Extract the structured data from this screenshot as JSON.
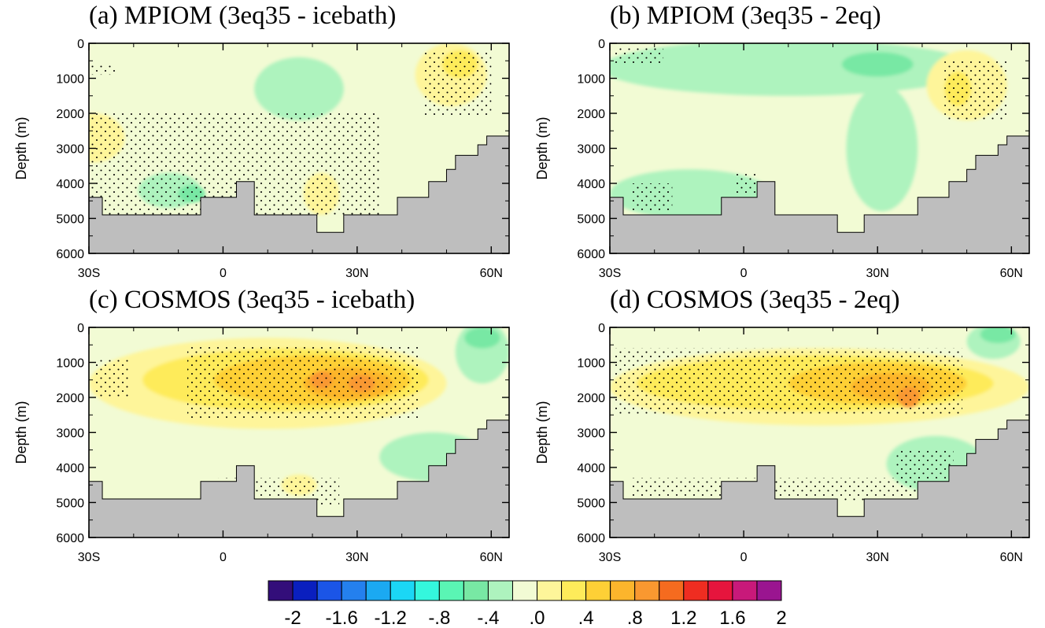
{
  "chart_data": [
    {
      "type": "heatmap",
      "title": "(a) MPIOM (3eq35 - icebath)",
      "ylabel": "Depth (m)",
      "xlim": [
        -30,
        64
      ],
      "ylim": [
        0,
        6000
      ],
      "x_ticks": [
        {
          "value": -30,
          "label": "30S"
        },
        {
          "value": 0,
          "label": "0"
        },
        {
          "value": 30,
          "label": "30N"
        },
        {
          "value": 60,
          "label": "60N"
        }
      ],
      "y_ticks": [
        {
          "value": 0,
          "label": "0"
        },
        {
          "value": 1000,
          "label": "1000"
        },
        {
          "value": 2000,
          "label": "2000"
        },
        {
          "value": 3000,
          "label": "3000"
        },
        {
          "value": 4000,
          "label": "4000"
        },
        {
          "value": 5000,
          "label": "5000"
        },
        {
          "value": 6000,
          "label": "6000"
        }
      ],
      "background": "#f2fbd4",
      "patches": [
        {
          "color": "#aef3be",
          "cx": 17,
          "cy": 1300,
          "rx": 10,
          "ry": 900
        },
        {
          "color": "#aef3be",
          "cx": -12,
          "cy": 4200,
          "rx": 7,
          "ry": 500
        },
        {
          "color": "#78e8a4",
          "cx": -7,
          "cy": 4300,
          "rx": 3,
          "ry": 250
        },
        {
          "color": "#fef59a",
          "cx": -29,
          "cy": 2700,
          "rx": 7,
          "ry": 700
        },
        {
          "color": "#fef59a",
          "cx": 51,
          "cy": 900,
          "rx": 8,
          "ry": 900
        },
        {
          "color": "#feeb5a",
          "cx": 53,
          "cy": 600,
          "rx": 4,
          "ry": 400
        },
        {
          "color": "#fef59a",
          "cx": 22,
          "cy": 4300,
          "rx": 4,
          "ry": 600
        }
      ],
      "stipple": [
        {
          "x": [
            -30,
            -24
          ],
          "y": [
            600,
            900
          ]
        },
        {
          "x": [
            -30,
            35
          ],
          "y": [
            2000,
            4900
          ]
        },
        {
          "x": [
            45,
            60
          ],
          "y": [
            200,
            2100
          ]
        }
      ]
    },
    {
      "type": "heatmap",
      "title": "(b) MPIOM (3eq35 - 2eq)",
      "ylabel": "Depth (m)",
      "xlim": [
        -30,
        64
      ],
      "ylim": [
        0,
        6000
      ],
      "x_ticks": [
        {
          "value": -30,
          "label": "30S"
        },
        {
          "value": 0,
          "label": "0"
        },
        {
          "value": 30,
          "label": "30N"
        },
        {
          "value": 60,
          "label": "60N"
        }
      ],
      "y_ticks": [
        {
          "value": 0,
          "label": "0"
        },
        {
          "value": 1000,
          "label": "1000"
        },
        {
          "value": 2000,
          "label": "2000"
        },
        {
          "value": 3000,
          "label": "3000"
        },
        {
          "value": 4000,
          "label": "4000"
        },
        {
          "value": 5000,
          "label": "5000"
        },
        {
          "value": 6000,
          "label": "6000"
        }
      ],
      "background": "#f2fbd4",
      "patches": [
        {
          "color": "#aef3be",
          "cx": 10,
          "cy": 700,
          "rx": 42,
          "ry": 800
        },
        {
          "color": "#78e8a4",
          "cx": 30,
          "cy": 600,
          "rx": 8,
          "ry": 350
        },
        {
          "color": "#aef3be",
          "cx": -12,
          "cy": 4300,
          "rx": 18,
          "ry": 700
        },
        {
          "color": "#aef3be",
          "cx": 31,
          "cy": 3000,
          "rx": 8,
          "ry": 1800
        },
        {
          "color": "#fef59a",
          "cx": 50,
          "cy": 1200,
          "rx": 9,
          "ry": 1000
        },
        {
          "color": "#feeb5a",
          "cx": 48,
          "cy": 1300,
          "rx": 3,
          "ry": 500
        }
      ],
      "stipple": [
        {
          "x": [
            -29,
            -18
          ],
          "y": [
            100,
            600
          ]
        },
        {
          "x": [
            45,
            59
          ],
          "y": [
            500,
            2200
          ]
        },
        {
          "x": [
            -25,
            -16
          ],
          "y": [
            4000,
            4800
          ]
        },
        {
          "x": [
            -2,
            3
          ],
          "y": [
            3700,
            4300
          ]
        }
      ]
    },
    {
      "type": "heatmap",
      "title": "(c) COSMOS (3eq35 - icebath)",
      "ylabel": "Depth (m)",
      "xlim": [
        -30,
        64
      ],
      "ylim": [
        0,
        6000
      ],
      "x_ticks": [
        {
          "value": -30,
          "label": "30S"
        },
        {
          "value": 0,
          "label": "0"
        },
        {
          "value": 30,
          "label": "30N"
        },
        {
          "value": 60,
          "label": "60N"
        }
      ],
      "y_ticks": [
        {
          "value": 0,
          "label": "0"
        },
        {
          "value": 1000,
          "label": "1000"
        },
        {
          "value": 2000,
          "label": "2000"
        },
        {
          "value": 3000,
          "label": "3000"
        },
        {
          "value": 4000,
          "label": "4000"
        },
        {
          "value": 5000,
          "label": "5000"
        },
        {
          "value": 6000,
          "label": "6000"
        }
      ],
      "background": "#f2fbd4",
      "patches": [
        {
          "color": "#fef59a",
          "cx": 10,
          "cy": 1600,
          "rx": 40,
          "ry": 1300
        },
        {
          "color": "#feeb5a",
          "cx": 14,
          "cy": 1500,
          "rx": 32,
          "ry": 900
        },
        {
          "color": "#fed036",
          "cx": 20,
          "cy": 1500,
          "rx": 22,
          "ry": 700
        },
        {
          "color": "#fcb52c",
          "cx": 28,
          "cy": 1600,
          "rx": 10,
          "ry": 450
        },
        {
          "color": "#f99830",
          "cx": 22,
          "cy": 1500,
          "rx": 2.5,
          "ry": 250
        },
        {
          "color": "#f99830",
          "cx": 31,
          "cy": 1600,
          "rx": 3,
          "ry": 250
        },
        {
          "color": "#aef3be",
          "cx": 58,
          "cy": 700,
          "rx": 6,
          "ry": 900
        },
        {
          "color": "#78e8a4",
          "cx": 58,
          "cy": 300,
          "rx": 4,
          "ry": 300
        },
        {
          "color": "#aef3be",
          "cx": 47,
          "cy": 3700,
          "rx": 12,
          "ry": 700
        },
        {
          "color": "#fef59a",
          "cx": 17,
          "cy": 4500,
          "rx": 4,
          "ry": 300
        }
      ],
      "stipple": [
        {
          "x": [
            -29,
            -21
          ],
          "y": [
            900,
            2000
          ]
        },
        {
          "x": [
            -8,
            44
          ],
          "y": [
            500,
            2600
          ]
        },
        {
          "x": [
            -1,
            26
          ],
          "y": [
            4300,
            5100
          ]
        }
      ]
    },
    {
      "type": "heatmap",
      "title": "(d) COSMOS (3eq35 - 2eq)",
      "ylabel": "Depth (m)",
      "xlim": [
        -30,
        64
      ],
      "ylim": [
        0,
        6000
      ],
      "x_ticks": [
        {
          "value": -30,
          "label": "30S"
        },
        {
          "value": 0,
          "label": "0"
        },
        {
          "value": 30,
          "label": "30N"
        },
        {
          "value": 60,
          "label": "60N"
        }
      ],
      "y_ticks": [
        {
          "value": 0,
          "label": "0"
        },
        {
          "value": 1000,
          "label": "1000"
        },
        {
          "value": 2000,
          "label": "2000"
        },
        {
          "value": 3000,
          "label": "3000"
        },
        {
          "value": 4000,
          "label": "4000"
        },
        {
          "value": 5000,
          "label": "5000"
        },
        {
          "value": 6000,
          "label": "6000"
        }
      ],
      "background": "#f2fbd4",
      "patches": [
        {
          "color": "#fef59a",
          "cx": 17,
          "cy": 1700,
          "rx": 47,
          "ry": 1100
        },
        {
          "color": "#feeb5a",
          "cx": 16,
          "cy": 1600,
          "rx": 40,
          "ry": 800
        },
        {
          "color": "#fed036",
          "cx": 30,
          "cy": 1600,
          "rx": 20,
          "ry": 600
        },
        {
          "color": "#fcb52c",
          "cx": 33,
          "cy": 1700,
          "rx": 9,
          "ry": 400
        },
        {
          "color": "#f99830",
          "cx": 37,
          "cy": 2000,
          "rx": 2.5,
          "ry": 300
        },
        {
          "color": "#aef3be",
          "cx": 43,
          "cy": 3900,
          "rx": 11,
          "ry": 800
        },
        {
          "color": "#aef3be",
          "cx": 56,
          "cy": 400,
          "rx": 6,
          "ry": 500
        },
        {
          "color": "#78e8a4",
          "cx": 57,
          "cy": 200,
          "rx": 4,
          "ry": 250
        }
      ],
      "stipple": [
        {
          "x": [
            -29,
            49
          ],
          "y": [
            600,
            2500
          ]
        },
        {
          "x": [
            -25,
            40
          ],
          "y": [
            4300,
            5000
          ]
        },
        {
          "x": [
            34,
            47
          ],
          "y": [
            3500,
            4800
          ]
        }
      ]
    }
  ],
  "bathymetry_profile": [
    [
      -30,
      4400
    ],
    [
      -27,
      4400
    ],
    [
      -27,
      4900
    ],
    [
      -5,
      4900
    ],
    [
      -5,
      4400
    ],
    [
      3,
      4400
    ],
    [
      3,
      3950
    ],
    [
      7,
      3950
    ],
    [
      7,
      4900
    ],
    [
      21,
      4900
    ],
    [
      21,
      5400
    ],
    [
      27,
      5400
    ],
    [
      27,
      4900
    ],
    [
      39,
      4900
    ],
    [
      39,
      4400
    ],
    [
      46,
      4400
    ],
    [
      46,
      3950
    ],
    [
      50,
      3950
    ],
    [
      50,
      3600
    ],
    [
      52,
      3600
    ],
    [
      52,
      3200
    ],
    [
      57,
      3200
    ],
    [
      57,
      2900
    ],
    [
      59,
      2900
    ],
    [
      59,
      2650
    ],
    [
      64,
      2650
    ]
  ],
  "land_color": "#bebebe",
  "colorbar": {
    "colors": [
      "#330e7a",
      "#0a1fbf",
      "#1b55e7",
      "#2480ee",
      "#1ba9f2",
      "#1bd7f5",
      "#34f7dd",
      "#5af5b4",
      "#78e8a4",
      "#aef3be",
      "#f2fbd4",
      "#fef59a",
      "#feeb5a",
      "#fed036",
      "#fcb52c",
      "#f99830",
      "#f56b1f",
      "#ef2d21",
      "#e6153d",
      "#c8197a",
      "#9a1590"
    ],
    "labels": [
      "-2",
      "-1.6",
      "-1.2",
      "-.8",
      "-.4",
      ".0",
      ".4",
      ".8",
      "1.2",
      "1.6",
      "2"
    ]
  }
}
